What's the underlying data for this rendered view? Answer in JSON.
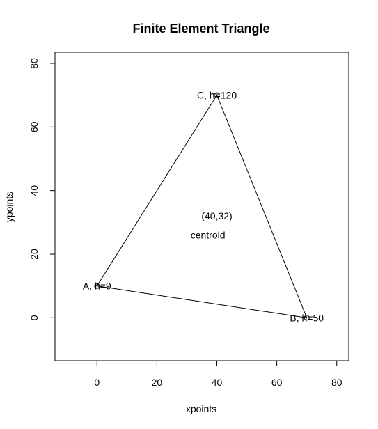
{
  "chart_data": {
    "type": "scatter",
    "title": "Finite Element Triangle",
    "xlabel": "xpoints",
    "ylabel": "ypoints",
    "xlim": [
      -14,
      84
    ],
    "ylim": [
      -13.5,
      83.5
    ],
    "xticks": [
      0,
      20,
      40,
      60,
      80
    ],
    "yticks": [
      0,
      20,
      40,
      60,
      80
    ],
    "grid": false,
    "points": [
      {
        "id": "A",
        "x": 0,
        "y": 10,
        "label": "A, h=9"
      },
      {
        "id": "B",
        "x": 70,
        "y": 0,
        "label": "B, h=50"
      },
      {
        "id": "C",
        "x": 40,
        "y": 70,
        "label": "C, h=120"
      }
    ],
    "edges": [
      [
        "A",
        "B"
      ],
      [
        "B",
        "C"
      ],
      [
        "C",
        "A"
      ]
    ],
    "annotations": [
      {
        "x": 40,
        "y": 32,
        "text": "(40,32)"
      },
      {
        "x": 37,
        "y": 26,
        "text": "centroid"
      }
    ]
  }
}
